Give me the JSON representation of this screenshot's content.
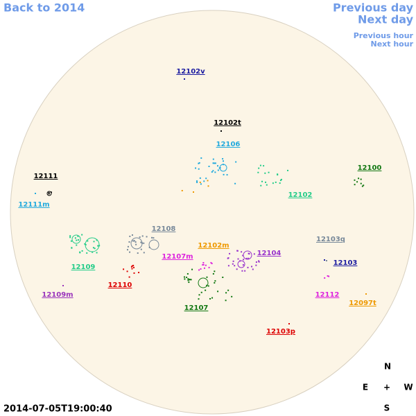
{
  "nav": {
    "back": "Back to 2014",
    "previous_day": "Previous day",
    "next_day": "Next day",
    "previous_hour": "Previous hour",
    "next_hour": "Next hour"
  },
  "timestamp": "2014-07-05T19:00:40",
  "compass": {
    "north": "N",
    "east": "E",
    "center": "+",
    "west": "W",
    "south": "S"
  },
  "regions": [
    {
      "label": "12102v",
      "color": "#1a1aa0"
    },
    {
      "label": "12102t",
      "color": "#000000"
    },
    {
      "label": "12106",
      "color": "#22aadd"
    },
    {
      "label": "12111",
      "color": "#000000"
    },
    {
      "label": "12111m",
      "color": "#22aadd"
    },
    {
      "label": "12100",
      "color": "#117711"
    },
    {
      "label": "12102",
      "color": "#22cc88"
    },
    {
      "label": "12108",
      "color": "#778899"
    },
    {
      "label": "12103q",
      "color": "#778899"
    },
    {
      "label": "12102m",
      "color": "#ee9900"
    },
    {
      "label": "12104",
      "color": "#9933cc"
    },
    {
      "label": "12107m",
      "color": "#dd22dd"
    },
    {
      "label": "12109",
      "color": "#22cc88"
    },
    {
      "label": "12103",
      "color": "#1a1aa0"
    },
    {
      "label": "12110",
      "color": "#dd0000"
    },
    {
      "label": "12109m",
      "color": "#9933bb"
    },
    {
      "label": "12112",
      "color": "#dd22dd"
    },
    {
      "label": "12097t",
      "color": "#ee9900"
    },
    {
      "label": "12107",
      "color": "#117711"
    },
    {
      "label": "12103p",
      "color": "#dd0000"
    }
  ]
}
